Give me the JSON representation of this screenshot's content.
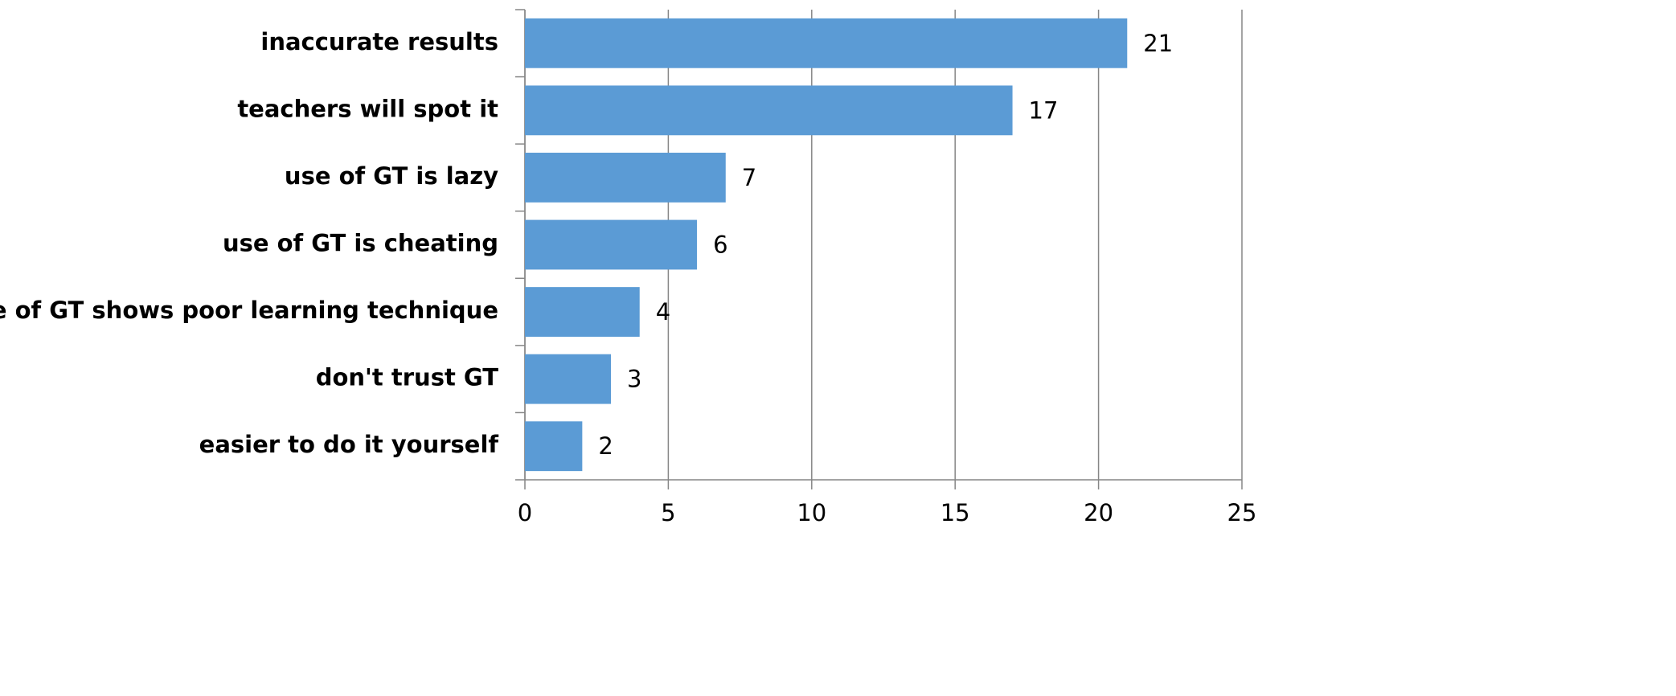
{
  "chart_data": {
    "type": "bar",
    "orientation": "horizontal",
    "categories": [
      "inaccurate results",
      "teachers will spot it",
      "use of GT is lazy",
      "use of GT is cheating",
      "use of GT shows poor learning technique",
      "don't trust GT",
      "easier to do it yourself"
    ],
    "values": [
      21,
      17,
      7,
      6,
      4,
      3,
      2
    ],
    "color": "#5b9bd5",
    "xlim": [
      0,
      25
    ],
    "xticks": [
      0,
      5,
      10,
      15,
      20,
      25
    ],
    "grid": true
  }
}
